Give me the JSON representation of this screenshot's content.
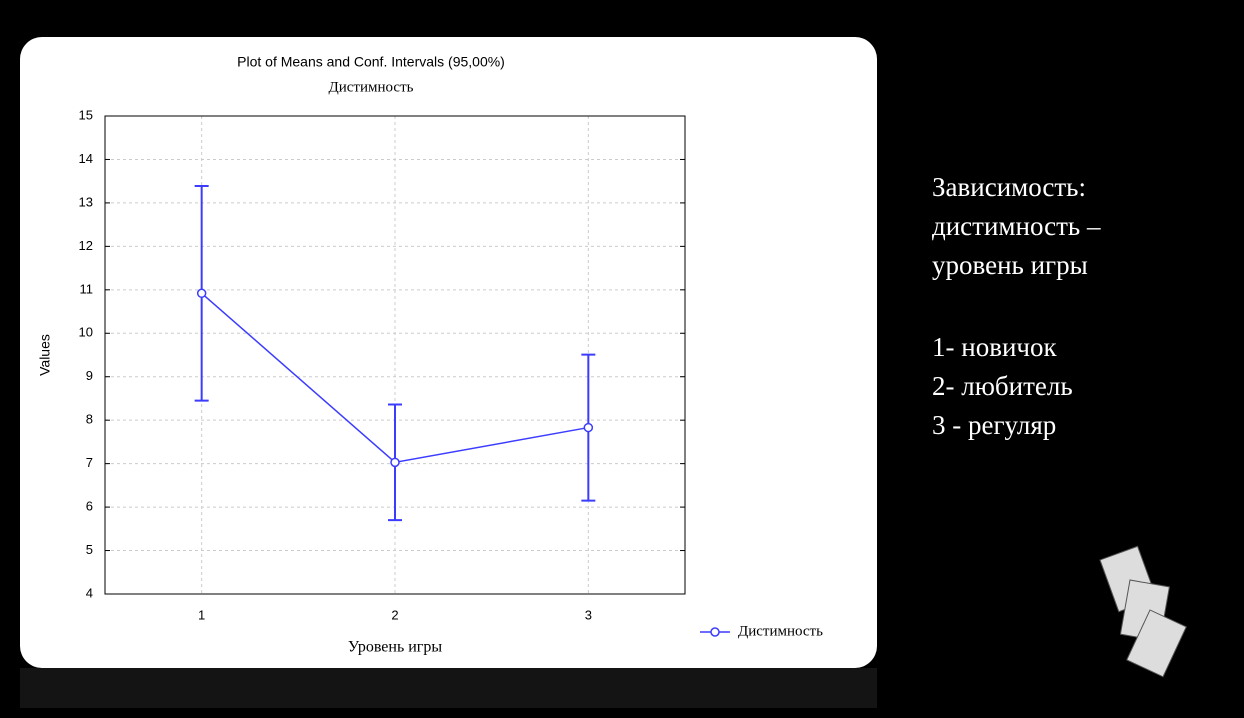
{
  "chart_data": {
    "type": "means-ci",
    "title": "Plot of Means and Conf. Intervals (95,00%)",
    "subtitle": "Дистимность",
    "x_label": "Уровень игры",
    "y_label": "Values",
    "categories": [
      "1",
      "2",
      "3"
    ],
    "series": [
      {
        "name": "Дистимность",
        "color": "#3c3cff",
        "values": [
          10.92,
          7.03,
          7.83
        ],
        "errors": [
          2.47,
          1.33,
          1.68
        ]
      }
    ],
    "ylim": [
      4,
      15
    ],
    "yticks": [
      4,
      5,
      6,
      7,
      8,
      9,
      10,
      11,
      12,
      13,
      14,
      15
    ],
    "grid": true,
    "legend": "bottom-right"
  },
  "slide": {
    "heading": [
      "Зависимость:",
      "дистимность –",
      "уровень игры"
    ],
    "levels": [
      "1- новичок",
      "2- любитель",
      "3 - регуляр"
    ]
  }
}
